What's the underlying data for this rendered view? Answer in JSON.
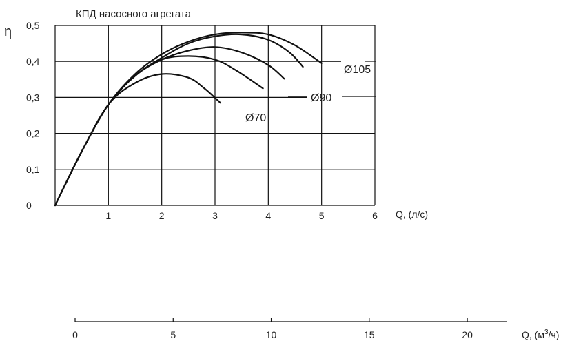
{
  "chart_data": {
    "type": "line",
    "title": "КПД насосного агрегата",
    "ylabel": "η",
    "xlabel": "Q, (л/с)",
    "xlim": [
      0,
      6
    ],
    "ylim": [
      0,
      0.5
    ],
    "grid": true,
    "x_ticks": [
      "1",
      "2",
      "3",
      "4",
      "5",
      "6"
    ],
    "y_ticks": [
      "0",
      "0,1",
      "0,2",
      "0,3",
      "0,4",
      "0,5"
    ],
    "secondary_axis": {
      "label": "Q, (м³/ч)",
      "label_main": "Q, (м",
      "label_sup": "3",
      "label_end": "/ч)",
      "ticks": [
        "0",
        "5",
        "10",
        "15",
        "20"
      ],
      "tick_values": [
        0,
        5,
        10,
        15,
        20
      ],
      "range": [
        0,
        22
      ]
    },
    "curve_labels": [
      "Ø105",
      "Ø90",
      "Ø70"
    ],
    "series": [
      {
        "x": [
          0,
          0.5,
          1.0,
          1.5,
          2.0,
          2.5,
          2.8,
          3.1
        ],
        "y": [
          0,
          0.15,
          0.28,
          0.34,
          0.365,
          0.355,
          0.325,
          0.285
        ]
      },
      {
        "x": [
          0,
          0.5,
          1.0,
          1.5,
          2.0,
          2.5,
          3.0,
          3.4,
          3.9
        ],
        "y": [
          0,
          0.15,
          0.28,
          0.36,
          0.405,
          0.415,
          0.405,
          0.375,
          0.325
        ]
      },
      {
        "x": [
          0,
          0.5,
          1.0,
          1.5,
          2.0,
          2.5,
          3.0,
          3.5,
          4.0,
          4.3
        ],
        "y": [
          0,
          0.15,
          0.28,
          0.36,
          0.405,
          0.43,
          0.44,
          0.425,
          0.39,
          0.352
        ]
      },
      {
        "x": [
          0,
          0.5,
          1.0,
          1.5,
          2.0,
          2.5,
          3.0,
          3.5,
          4.0,
          4.4,
          4.65
        ],
        "y": [
          0,
          0.15,
          0.28,
          0.36,
          0.41,
          0.45,
          0.47,
          0.475,
          0.46,
          0.425,
          0.385
        ]
      },
      {
        "x": [
          0,
          0.5,
          1.0,
          1.5,
          2.0,
          2.5,
          3.0,
          3.5,
          4.0,
          4.5,
          5.0
        ],
        "y": [
          0,
          0.15,
          0.28,
          0.365,
          0.42,
          0.455,
          0.475,
          0.48,
          0.475,
          0.445,
          0.395
        ]
      }
    ]
  }
}
